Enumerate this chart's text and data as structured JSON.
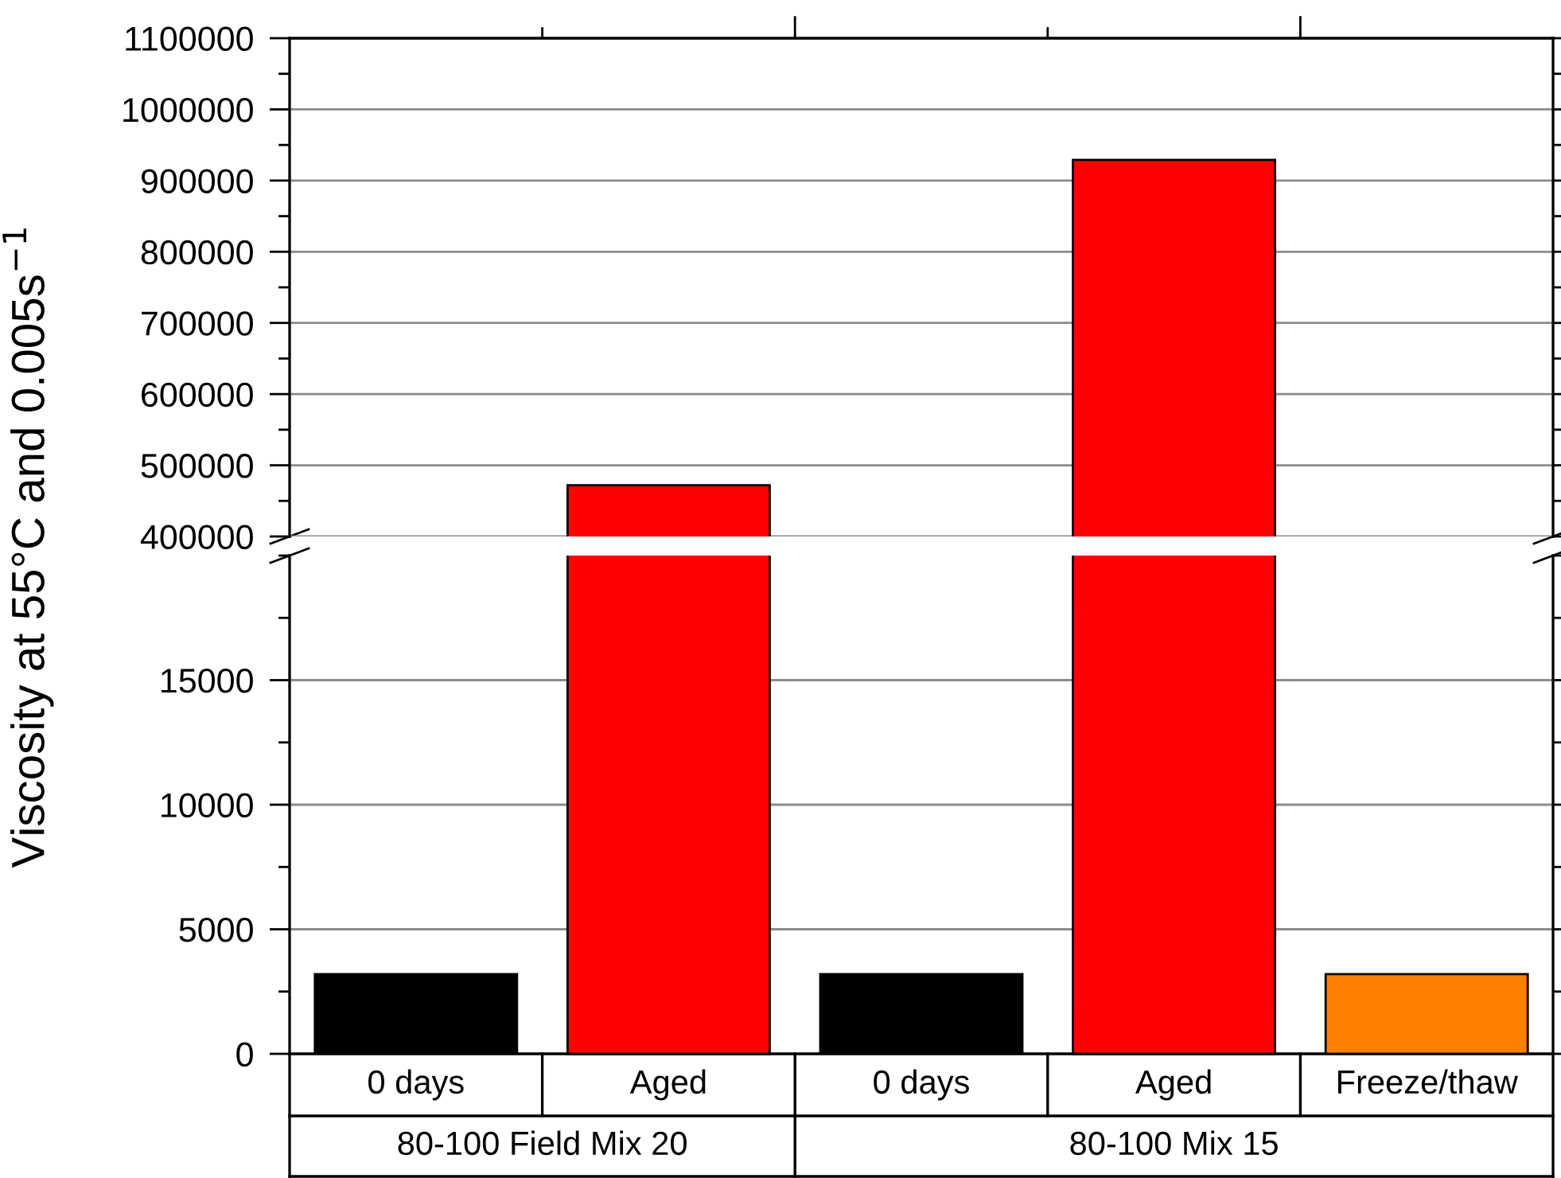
{
  "chart_data": [
    {
      "type": "bar",
      "ylabel": "Viscosity at 55°C and 0.005s$^{−1}$",
      "categories": [
        null,
        null,
        null,
        null,
        null
      ],
      "values": [
        null,
        472000,
        null,
        929000,
        null
      ],
      "colors": [
        "#000000",
        "#ff0000",
        "#000000",
        "#ff0000",
        "#ff8000"
      ],
      "ylim": [
        400000,
        1100000
      ],
      "yticks": [
        400000,
        500000,
        600000,
        700000,
        800000,
        900000,
        1000000,
        1100000
      ],
      "grid": "y",
      "tick_labels": "y"
    },
    {
      "type": "bar",
      "categories": [
        "0 days",
        "Aged",
        "0 days",
        "Aged",
        "Freeze/thaw"
      ],
      "values": [
        3200,
        null,
        3200,
        null,
        3200
      ],
      "colors": [
        "#000000",
        "#ff0000",
        "#000000",
        "#ff0000",
        "#ff8000"
      ],
      "ylim": [
        0,
        20000
      ],
      "yticks": [
        0,
        5000,
        10000,
        15000
      ],
      "grid": "y",
      "annotations": [
        "80-100 Field Mix 20",
        "80-100 Mix 15"
      ]
    }
  ]
}
